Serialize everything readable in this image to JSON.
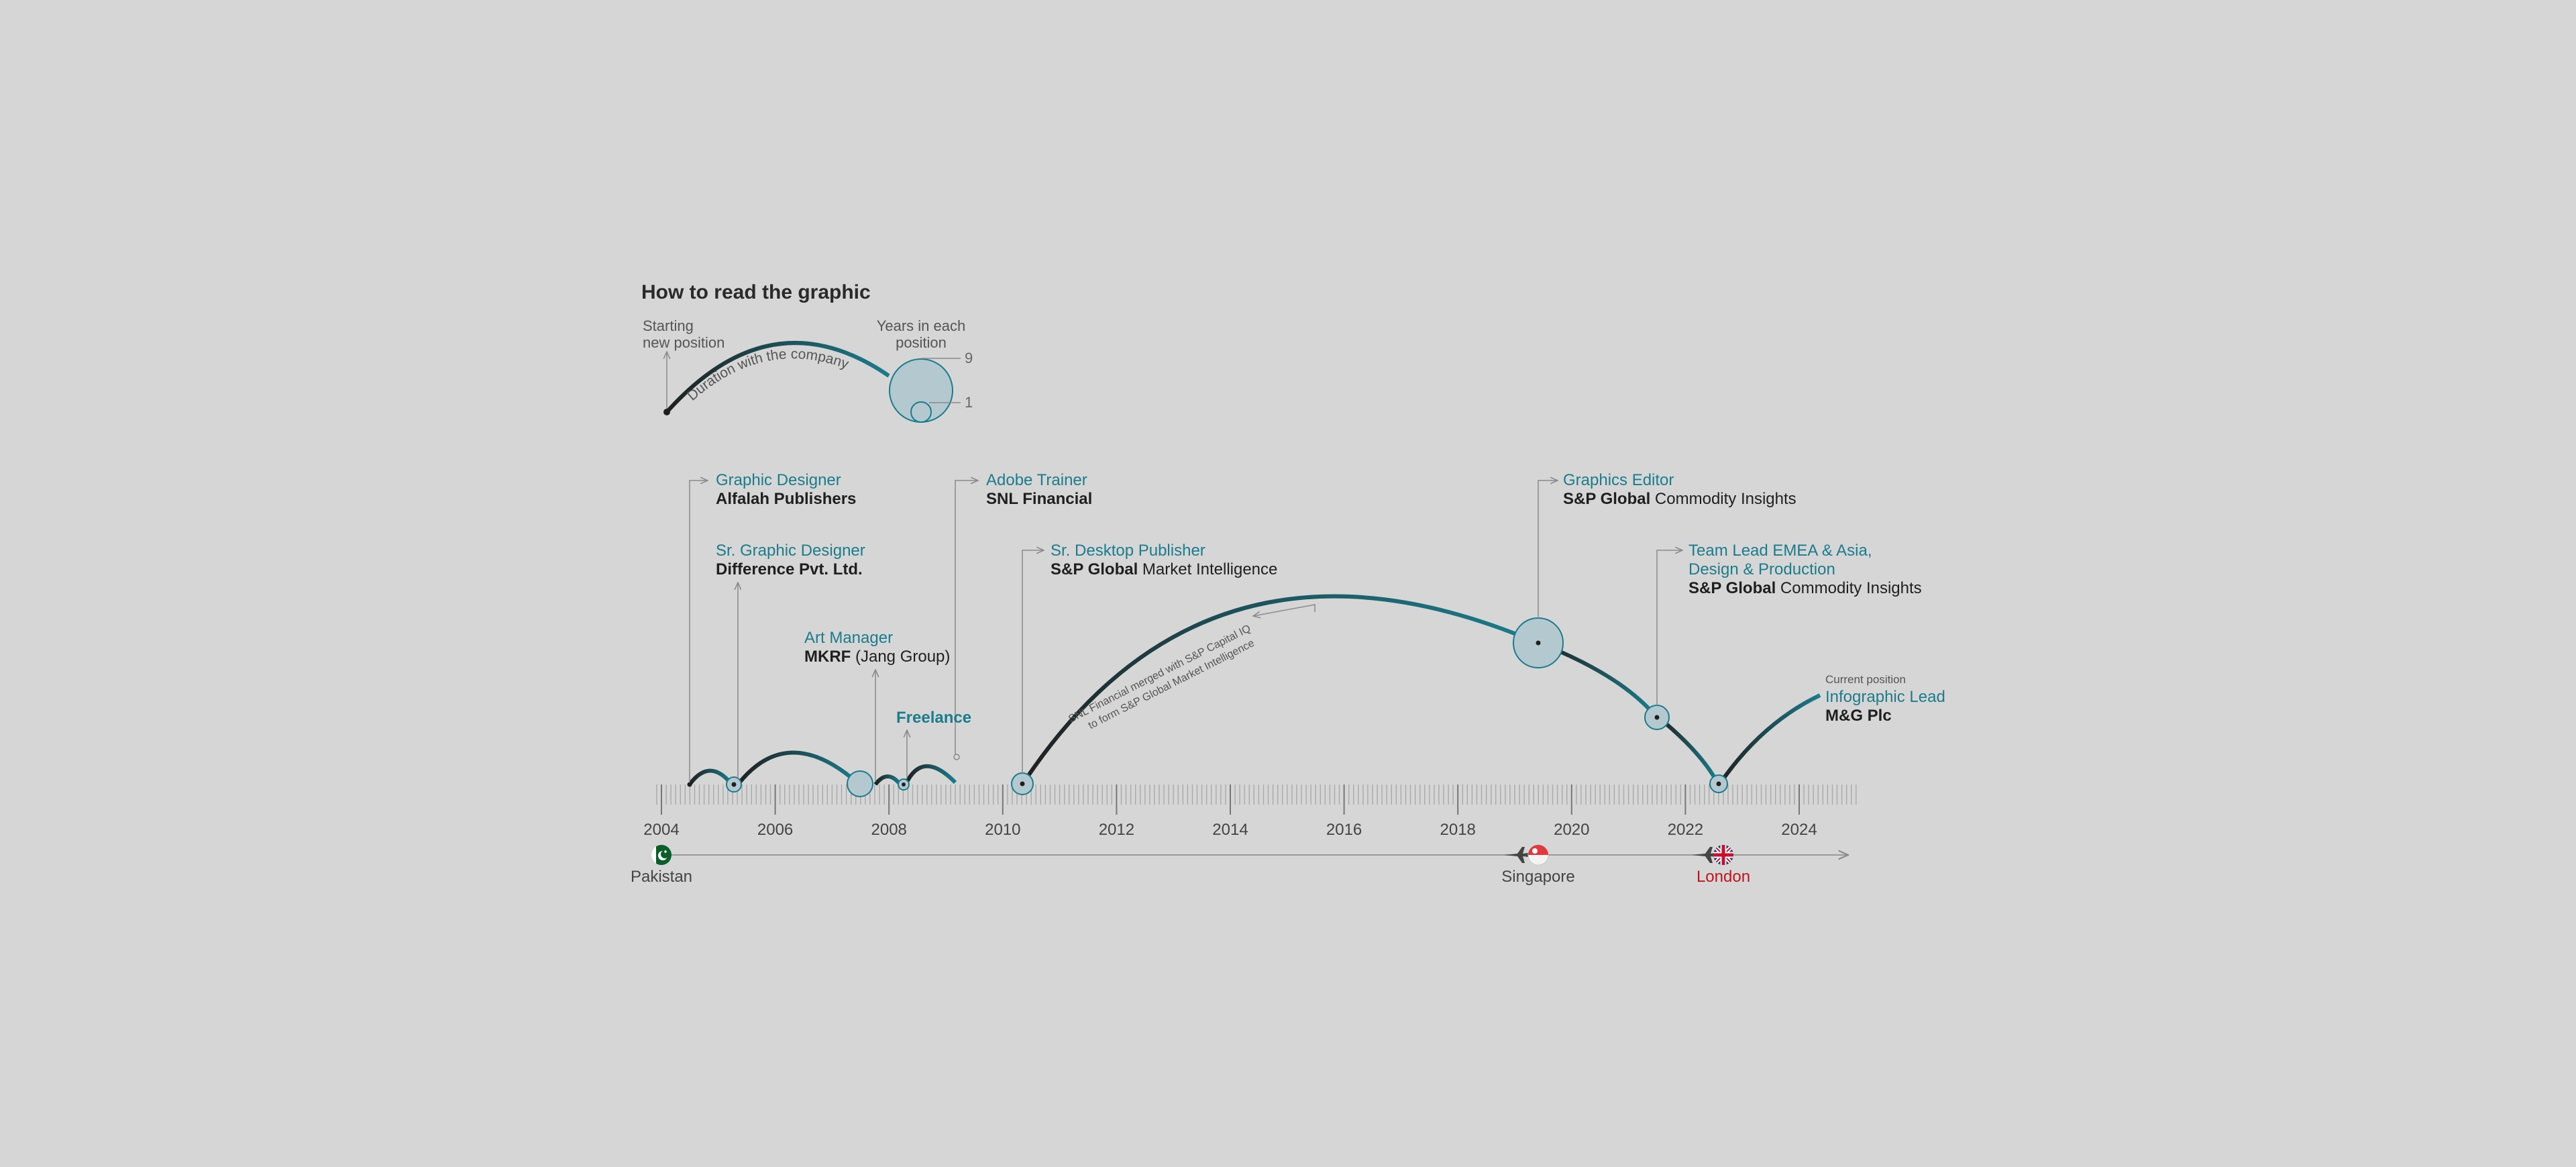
{
  "legend": {
    "title": "How to read the graphic",
    "starting_line1": "Starting",
    "starting_line2": "new position",
    "years_line1": "Years in each",
    "years_line2": "position",
    "duration_label": "Duration with the company",
    "big_value": "9",
    "small_value": "1"
  },
  "timeline": {
    "years": [
      "2004",
      "2006",
      "2008",
      "2010",
      "2012",
      "2014",
      "2016",
      "2018",
      "2020",
      "2022",
      "2024"
    ],
    "year_range": [
      2003.9,
      2025.0
    ]
  },
  "positions": [
    {
      "title": "Graphic Designer",
      "company_bold": "Alfalah Publishers",
      "company_rest": ""
    },
    {
      "title": "Sr. Graphic Designer",
      "company_bold": "Difference Pvt. Ltd.",
      "company_rest": ""
    },
    {
      "title": "Art Manager",
      "company_bold": "MKRF",
      "company_rest": " (Jang Group)"
    },
    {
      "title": "Freelance",
      "company_bold": "",
      "company_rest": ""
    },
    {
      "title": "Adobe Trainer",
      "company_bold": "SNL Financial",
      "company_rest": ""
    },
    {
      "title": "Sr. Desktop Publisher",
      "company_bold": "S&P Global",
      "company_rest": " Market Intelligence"
    },
    {
      "title": "Graphics Editor",
      "company_bold": "S&P Global",
      "company_rest": " Commodity Insights"
    },
    {
      "title_line1": "Team Lead EMEA & Asia,",
      "title_line2": "Design & Production",
      "company_bold": "S&P Global",
      "company_rest": " Commodity Insights"
    },
    {
      "note": "Current position",
      "title": "Infographic Lead",
      "company_bold": "M&G Plc",
      "company_rest": ""
    }
  ],
  "merger_note": {
    "line1": "SNL Financial merged with S&P Capital IQ",
    "line2": "to form S&P Global Market Intelligence"
  },
  "locations": [
    {
      "name": "Pakistan",
      "flag": "pakistan-flag",
      "color": "#444444"
    },
    {
      "name": "Singapore",
      "flag": "singapore-flag",
      "color": "#444444"
    },
    {
      "name": "London",
      "flag": "uk-flag",
      "color": "#c0141c"
    }
  ],
  "colors": {
    "teal": "#1b7c8c",
    "dark": "#1f1f1f",
    "bubble": "#b4c8d0",
    "accent_red": "#c0141c"
  }
}
